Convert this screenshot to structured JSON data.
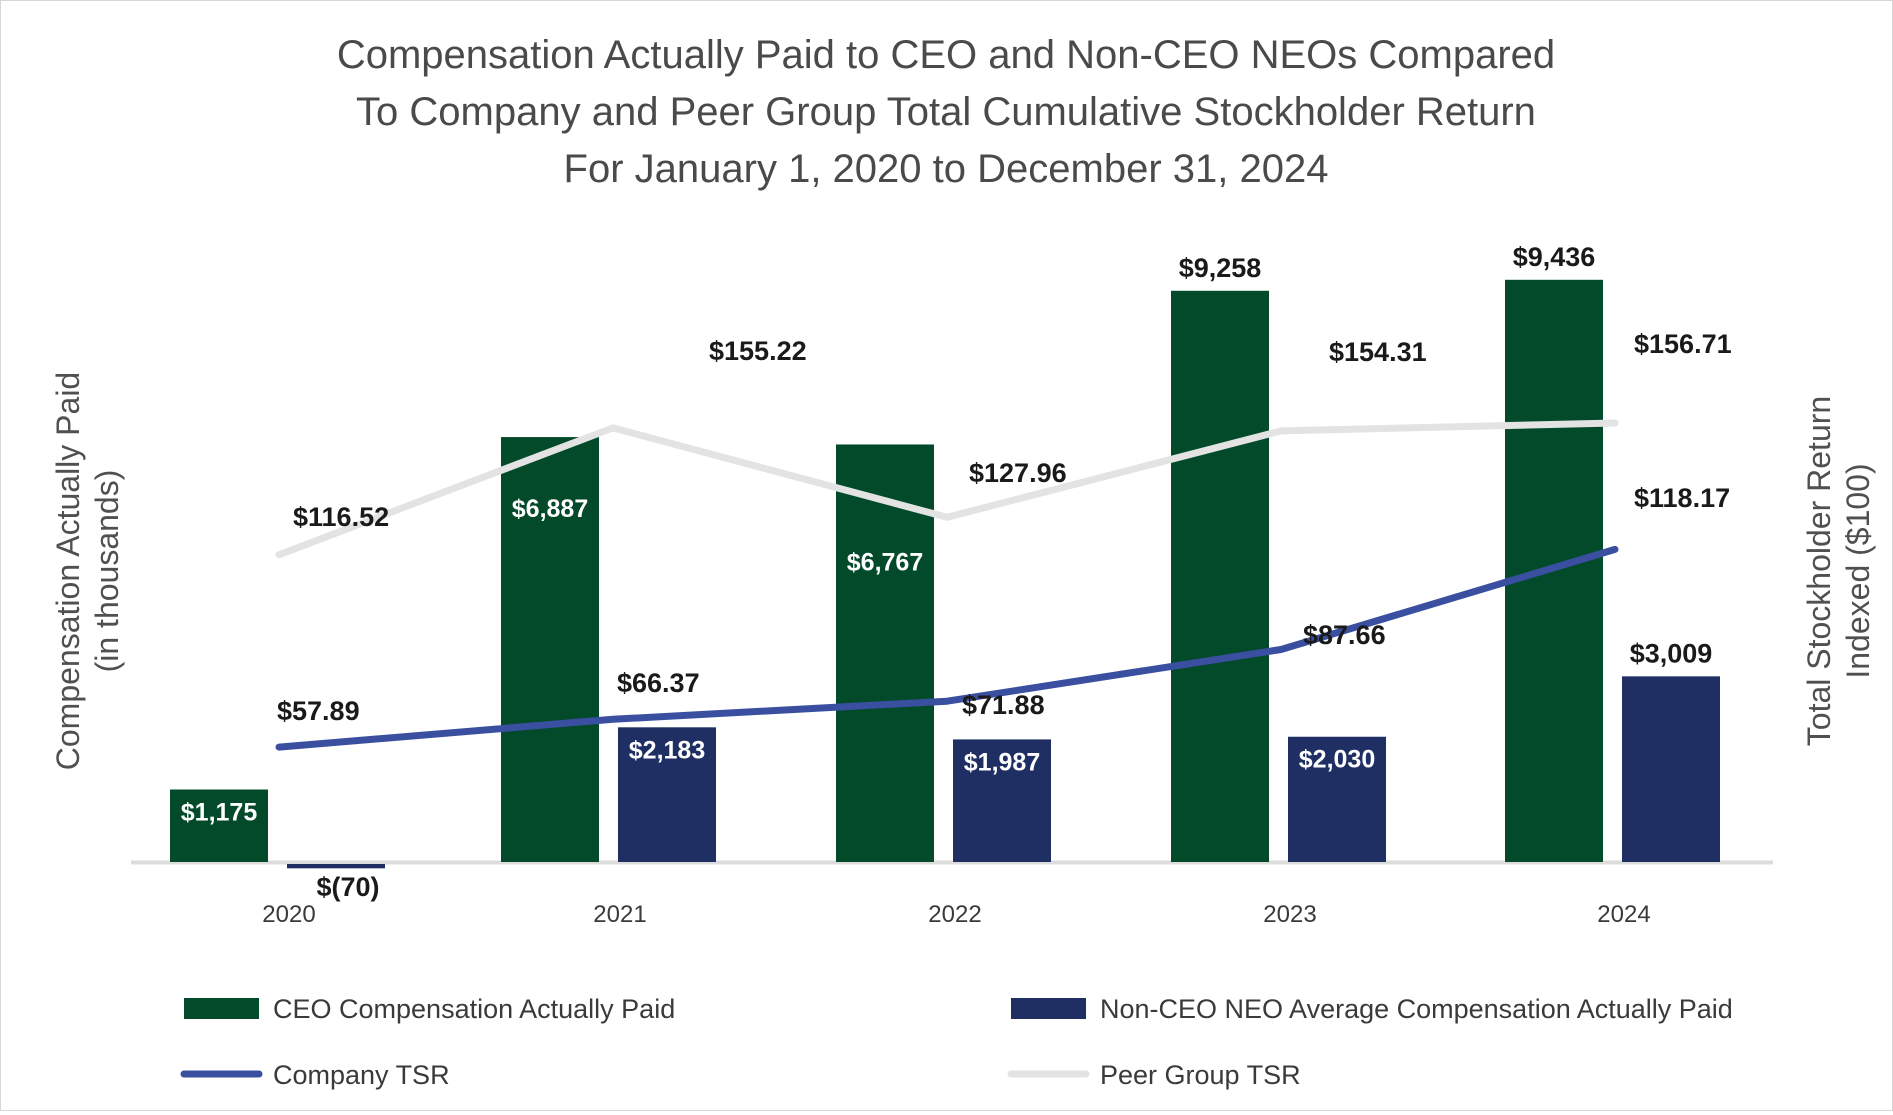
{
  "chart_data": {
    "type": "bar",
    "title": [
      "Compensation Actually Paid to CEO and Non-CEO NEOs Compared",
      "To Company and Peer Group Total Cumulative Stockholder Return",
      "For January 1, 2020 to December 31, 2024"
    ],
    "ylabel": [
      "Compensation  Actually Paid",
      "(in thousands)"
    ],
    "y2label": [
      "Total Stockholder Return",
      "Indexed ($100)"
    ],
    "categories": [
      "2020",
      "2021",
      "2022",
      "2023",
      "2024"
    ],
    "ylim": [
      -200,
      9600
    ],
    "y2lim": [
      -100,
      200
    ],
    "grid": false,
    "legend_position": "bottom",
    "series": [
      {
        "name": "CEO Compensation Actually Paid",
        "kind": "bar",
        "axis": "left",
        "color": "#034a2b",
        "values": [
          1175,
          6887,
          6767,
          9258,
          9436
        ],
        "labels": [
          "$1,175",
          "$6,887",
          "$6,767",
          "$9,258",
          "$9,436"
        ]
      },
      {
        "name": "Non-CEO NEO Average Compensation Actually Paid",
        "kind": "bar",
        "axis": "left",
        "color": "#1f2f64",
        "values": [
          -70,
          2183,
          1987,
          2030,
          3009
        ],
        "labels": [
          "$(70)",
          "$2,183",
          "$1,987",
          "$2,030",
          "$3,009"
        ]
      },
      {
        "name": "Company TSR",
        "kind": "line",
        "axis": "right",
        "color": "#3a4fa0",
        "values": [
          57.89,
          66.37,
          71.88,
          87.66,
          118.17
        ],
        "labels": [
          "$57.89",
          "$66.37",
          "$71.88",
          "$87.66",
          "$118.17"
        ]
      },
      {
        "name": "Peer Group TSR",
        "kind": "line",
        "axis": "right",
        "color": "#e3e3e3",
        "values": [
          116.52,
          155.22,
          127.96,
          154.31,
          156.71
        ],
        "labels": [
          "$116.52",
          "$155.22",
          "$127.96",
          "$154.31",
          "$156.71"
        ]
      }
    ]
  }
}
